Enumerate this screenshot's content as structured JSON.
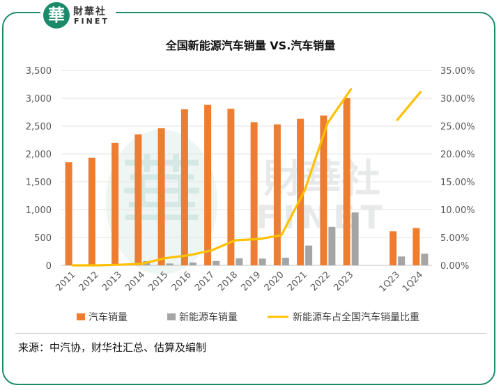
{
  "brand": {
    "mark": "華",
    "name_cn": "財華社",
    "name_en": "FINET"
  },
  "source_note": "来源：中汽协，财华社汇总、估算及编制",
  "colors": {
    "car_sales": "#ED7D31",
    "nev_sales": "#A5A5A5",
    "nev_share": "#FFC000",
    "frame": "#1a8a6a"
  },
  "chart_data": {
    "type": "bar",
    "title": "全国新能源汽车销量 VS.汽车销量",
    "categories": [
      "2011",
      "2012",
      "2013",
      "2014",
      "2015",
      "2016",
      "2017",
      "2018",
      "2019",
      "2020",
      "2021",
      "2022",
      "2023",
      "",
      "1Q23",
      "1Q24"
    ],
    "y_left": {
      "min": 0,
      "max": 3500,
      "step": 500,
      "ticks": [
        "0",
        "500",
        "1,000",
        "1,500",
        "2,000",
        "2,500",
        "3,000",
        "3,500"
      ]
    },
    "y_right": {
      "min": 0,
      "max": 35,
      "step": 5,
      "ticks": [
        "0.00%",
        "5.00%",
        "10.00%",
        "15.00%",
        "20.00%",
        "25.00%",
        "30.00%",
        "35.00%"
      ]
    },
    "series": [
      {
        "name": "汽车销量",
        "type": "bar",
        "axis": "left",
        "values": [
          1850,
          1930,
          2200,
          2350,
          2460,
          2800,
          2880,
          2810,
          2570,
          2530,
          2630,
          2690,
          3000,
          null,
          610,
          670
        ]
      },
      {
        "name": "新能源车销量",
        "type": "bar",
        "axis": "left",
        "values": [
          8,
          13,
          18,
          75,
          33,
          51,
          78,
          126,
          121,
          137,
          355,
          690,
          950,
          null,
          159,
          209
        ]
      },
      {
        "name": "新能源车占全国汽车销量比重",
        "type": "line",
        "axis": "right",
        "values": [
          0.0,
          0.0,
          0.1,
          0.3,
          1.3,
          1.8,
          2.7,
          4.5,
          4.7,
          5.4,
          13.4,
          25.6,
          31.6,
          null,
          26.1,
          31.1
        ]
      }
    ],
    "legend_position": "bottom",
    "grid": true
  }
}
